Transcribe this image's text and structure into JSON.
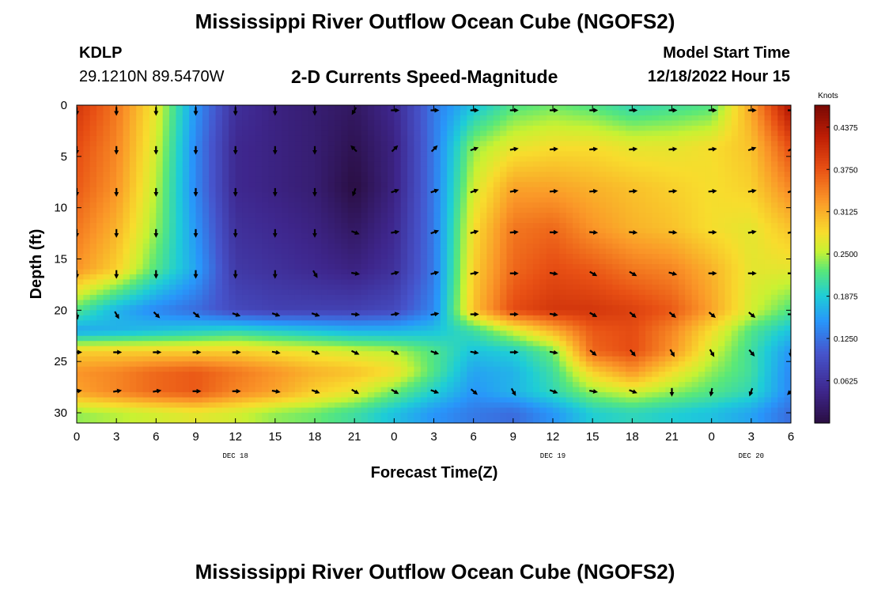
{
  "header": {
    "title": "Mississippi River Outflow Ocean Cube (NGOFS2)",
    "station": "KDLP",
    "coords": "29.1210N  89.5470W",
    "subtitle": "2-D Currents Speed-Magnitude",
    "model_start_label": "Model Start Time",
    "model_start_time": "12/18/2022 Hour 15"
  },
  "footer": {
    "title": "Mississippi River Outflow Ocean Cube (NGOFS2)"
  },
  "chart_data": {
    "type": "heatmap",
    "title": "2-D Currents Speed-Magnitude",
    "xlabel": "Forecast Time(Z)",
    "ylabel": "Depth (ft)",
    "x_hours": [
      0,
      54
    ],
    "x_tick_labels": [
      "0",
      "3",
      "6",
      "9",
      "12",
      "15",
      "18",
      "21",
      "0",
      "3",
      "6",
      "9",
      "12",
      "15",
      "18",
      "21",
      "0",
      "3",
      "6"
    ],
    "date_labels": [
      {
        "hour": 12,
        "text": "DEC 18"
      },
      {
        "hour": 36,
        "text": "DEC 19"
      },
      {
        "hour": 51,
        "text": "DEC 20"
      }
    ],
    "ylim": [
      0,
      31
    ],
    "y_ticks": [
      0,
      5,
      10,
      15,
      20,
      25,
      30
    ],
    "colorbar": {
      "label": "Knots",
      "range": [
        0.0,
        0.47
      ],
      "ticks": [
        "0.4375",
        "0.3750",
        "0.3125",
        "0.2500",
        "0.1875",
        "0.1250",
        "0.0625"
      ],
      "tick_values": [
        0.4375,
        0.375,
        0.3125,
        0.25,
        0.1875,
        0.125,
        0.0625
      ]
    },
    "speed_keyframes": {
      "hours": [
        0,
        3,
        6,
        9,
        12,
        15,
        18,
        21,
        24,
        27,
        30,
        33,
        36,
        39,
        42,
        45,
        48,
        51,
        54
      ],
      "depths": [
        0,
        4,
        8,
        12,
        16,
        20,
        22,
        24,
        26,
        28,
        30
      ],
      "values_knots": [
        [
          0.4,
          0.35,
          0.27,
          0.15,
          0.06,
          0.04,
          0.03,
          0.02,
          0.05,
          0.13,
          0.18,
          0.22,
          0.23,
          0.22,
          0.2,
          0.21,
          0.22,
          0.32,
          0.44
        ],
        [
          0.38,
          0.34,
          0.26,
          0.14,
          0.05,
          0.04,
          0.03,
          0.01,
          0.04,
          0.13,
          0.24,
          0.27,
          0.28,
          0.28,
          0.27,
          0.27,
          0.28,
          0.3,
          0.38
        ],
        [
          0.37,
          0.33,
          0.25,
          0.14,
          0.05,
          0.04,
          0.03,
          0.0,
          0.04,
          0.13,
          0.26,
          0.32,
          0.32,
          0.31,
          0.3,
          0.29,
          0.28,
          0.29,
          0.34
        ],
        [
          0.35,
          0.31,
          0.24,
          0.15,
          0.06,
          0.05,
          0.04,
          0.02,
          0.05,
          0.13,
          0.28,
          0.35,
          0.36,
          0.33,
          0.31,
          0.3,
          0.28,
          0.27,
          0.3
        ],
        [
          0.33,
          0.29,
          0.22,
          0.16,
          0.07,
          0.06,
          0.05,
          0.04,
          0.06,
          0.13,
          0.29,
          0.36,
          0.38,
          0.37,
          0.35,
          0.34,
          0.31,
          0.27,
          0.27
        ],
        [
          0.22,
          0.17,
          0.14,
          0.12,
          0.09,
          0.08,
          0.08,
          0.08,
          0.09,
          0.14,
          0.3,
          0.38,
          0.4,
          0.4,
          0.39,
          0.37,
          0.32,
          0.26,
          0.22
        ],
        [
          0.16,
          0.17,
          0.18,
          0.19,
          0.2,
          0.19,
          0.18,
          0.17,
          0.17,
          0.18,
          0.21,
          0.26,
          0.31,
          0.37,
          0.38,
          0.34,
          0.28,
          0.22,
          0.18
        ],
        [
          0.29,
          0.29,
          0.29,
          0.29,
          0.29,
          0.28,
          0.27,
          0.26,
          0.25,
          0.22,
          0.18,
          0.19,
          0.23,
          0.36,
          0.38,
          0.33,
          0.26,
          0.21,
          0.15
        ],
        [
          0.33,
          0.34,
          0.36,
          0.37,
          0.35,
          0.33,
          0.31,
          0.3,
          0.28,
          0.22,
          0.16,
          0.17,
          0.21,
          0.29,
          0.33,
          0.28,
          0.24,
          0.21,
          0.14
        ],
        [
          0.32,
          0.34,
          0.36,
          0.37,
          0.34,
          0.32,
          0.29,
          0.27,
          0.23,
          0.19,
          0.15,
          0.17,
          0.2,
          0.24,
          0.26,
          0.24,
          0.22,
          0.2,
          0.14
        ],
        [
          0.24,
          0.25,
          0.26,
          0.27,
          0.26,
          0.24,
          0.23,
          0.21,
          0.18,
          0.15,
          0.13,
          0.12,
          0.15,
          0.19,
          0.2,
          0.19,
          0.18,
          0.16,
          0.12
        ]
      ]
    },
    "vector_rows_depth_ft": [
      0.5,
      4.3,
      8.4,
      12.4,
      16.4,
      20.4,
      24.1,
      27.9
    ],
    "vector_directions_deg": [
      [
        90,
        90,
        90,
        90,
        90,
        90,
        90,
        120,
        0,
        0,
        0,
        0,
        0,
        0,
        0,
        0,
        0,
        0,
        0
      ],
      [
        90,
        90,
        90,
        90,
        90,
        90,
        90,
        225,
        -45,
        -45,
        -20,
        -10,
        -5,
        -5,
        -5,
        -5,
        -5,
        -20,
        -30
      ],
      [
        90,
        90,
        90,
        90,
        90,
        90,
        90,
        110,
        -20,
        -20,
        -20,
        -10,
        -5,
        -5,
        -5,
        -5,
        -5,
        -10,
        -20
      ],
      [
        90,
        90,
        90,
        90,
        90,
        90,
        90,
        20,
        -10,
        -20,
        -15,
        -5,
        0,
        5,
        5,
        5,
        0,
        -10,
        -15
      ],
      [
        90,
        90,
        90,
        90,
        90,
        90,
        60,
        10,
        -15,
        -15,
        -10,
        0,
        10,
        30,
        30,
        15,
        0,
        0,
        0
      ],
      [
        80,
        60,
        45,
        40,
        20,
        20,
        20,
        5,
        -10,
        -10,
        0,
        0,
        10,
        30,
        40,
        40,
        40,
        40,
        0
      ],
      [
        0,
        0,
        0,
        0,
        0,
        10,
        20,
        25,
        25,
        20,
        10,
        0,
        10,
        40,
        50,
        60,
        60,
        50,
        90
      ],
      [
        -10,
        -10,
        -10,
        0,
        0,
        10,
        20,
        30,
        30,
        20,
        40,
        60,
        20,
        10,
        20,
        90,
        100,
        110,
        135
      ]
    ]
  }
}
